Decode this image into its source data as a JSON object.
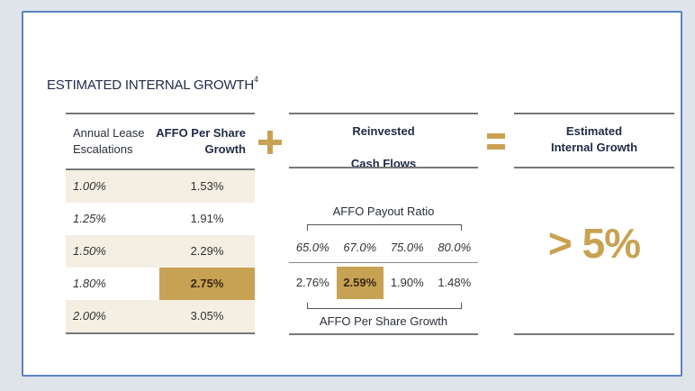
{
  "title": "ESTIMATED INTERNAL GROWTH",
  "title_footnote": "4",
  "left_table": {
    "col1_header_line1": "Annual Lease",
    "col1_header_line2": "Escalations",
    "col2_header_line1": "AFFO Per Share",
    "col2_header_line2": "Growth",
    "rows": [
      {
        "escalation": "1.00%",
        "growth": "1.53%"
      },
      {
        "escalation": "1.25%",
        "growth": "1.91%"
      },
      {
        "escalation": "1.50%",
        "growth": "2.29%"
      },
      {
        "escalation": "1.80%",
        "growth": "2.75%"
      },
      {
        "escalation": "2.00%",
        "growth": "3.05%"
      }
    ]
  },
  "middle": {
    "header_line1": "Reinvested",
    "header_line2": "Cash Flows",
    "payout_label": "AFFO Payout Ratio",
    "payout_ratios": [
      "65.0%",
      "67.0%",
      "75.0%",
      "80.0%"
    ],
    "growth_values": [
      "2.76%",
      "2.59%",
      "1.90%",
      "1.48%"
    ],
    "growth_label": "AFFO Per Share Growth"
  },
  "right": {
    "header_line1": "Estimated",
    "header_line2": "Internal Growth",
    "value": "> 5%"
  },
  "colors": {
    "accent_gold": "#c8a253",
    "row_shade": "#f4efe3",
    "frame_blue": "#5b84c4"
  }
}
